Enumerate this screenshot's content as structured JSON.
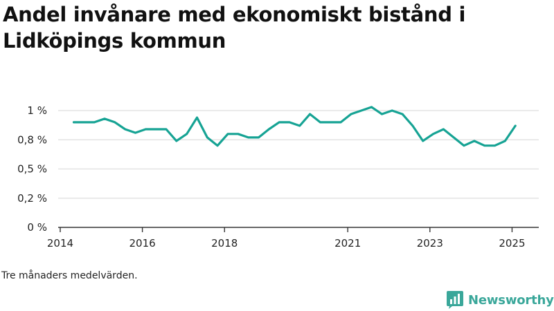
{
  "title": "Andel invånare med ekonomiskt bistånd i Lidköpings kommun",
  "note": "Tre månaders medelvärden.",
  "brand": {
    "name": "Newsworthy",
    "icon": "newsworthy-logo-icon",
    "color": "#3aa79a"
  },
  "colors": {
    "line": "#16a394",
    "grid": "#dddddd",
    "axis": "#333333"
  },
  "chart_data": {
    "type": "line",
    "title": "Andel invånare med ekonomiskt bistånd i Lidköpings kommun",
    "xlabel": "",
    "ylabel": "",
    "y_ticks": [
      {
        "value": 0,
        "label": "0 %"
      },
      {
        "value": 0.25,
        "label": "0,2 %"
      },
      {
        "value": 0.5,
        "label": "0,5 %"
      },
      {
        "value": 0.75,
        "label": "0,8 %"
      },
      {
        "value": 1.0,
        "label": "1 %"
      }
    ],
    "x_ticks": [
      {
        "value": 2014.0,
        "label": "2014"
      },
      {
        "value": 2016.0,
        "label": "2016"
      },
      {
        "value": 2018.0,
        "label": "2018"
      },
      {
        "value": 2021.0,
        "label": "2021"
      },
      {
        "value": 2023.0,
        "label": "2023"
      },
      {
        "value": 2025.0,
        "label": "2025"
      }
    ],
    "xlim": [
      2013.95,
      2025.65
    ],
    "ylim": [
      0,
      1.0
    ],
    "grid": true,
    "series": [
      {
        "x": [
          2014.33,
          2014.58,
          2014.83,
          2015.08,
          2015.33,
          2015.58,
          2015.83,
          2016.08,
          2016.33,
          2016.58,
          2016.83,
          2017.08,
          2017.33,
          2017.58,
          2017.83,
          2018.08,
          2018.33,
          2018.58,
          2018.83,
          2019.08,
          2019.33,
          2019.58,
          2019.83,
          2020.08,
          2020.33,
          2020.58,
          2020.83,
          2021.08,
          2021.33,
          2021.58,
          2021.83,
          2022.08,
          2022.33,
          2022.58,
          2022.83,
          2023.08,
          2023.33,
          2023.58,
          2023.83,
          2024.08,
          2024.33,
          2024.58,
          2024.83,
          2025.08
        ],
        "values": [
          0.9,
          0.9,
          0.9,
          0.93,
          0.9,
          0.84,
          0.81,
          0.84,
          0.84,
          0.84,
          0.74,
          0.8,
          0.94,
          0.77,
          0.7,
          0.8,
          0.8,
          0.77,
          0.77,
          0.84,
          0.9,
          0.9,
          0.87,
          0.97,
          0.9,
          0.9,
          0.9,
          0.97,
          1.0,
          1.03,
          0.97,
          1.0,
          0.97,
          0.87,
          0.74,
          0.8,
          0.84,
          0.77,
          0.7,
          0.74,
          0.7,
          0.7,
          0.74,
          0.87
        ]
      }
    ]
  }
}
